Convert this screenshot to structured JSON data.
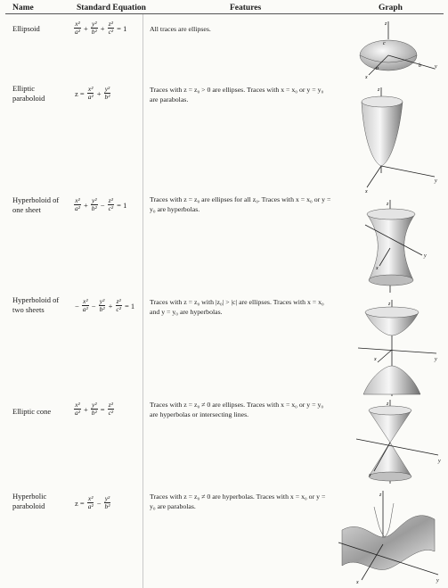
{
  "header": {
    "name": "Name",
    "equation": "Standard Equation",
    "features": "Features",
    "graph": "Graph"
  },
  "rows": [
    {
      "name": "Ellipsoid",
      "eq": [
        [
          "frac",
          "x²",
          "a²"
        ],
        [
          "op",
          "+"
        ],
        [
          "frac",
          "y²",
          "b²"
        ],
        [
          "op",
          "+"
        ],
        [
          "frac",
          "z²",
          "c²"
        ],
        [
          "op",
          "= 1"
        ]
      ],
      "features": "All traces are ellipses."
    },
    {
      "name": "Elliptic paraboloid",
      "eq": [
        [
          "op",
          "z ="
        ],
        [
          "frac",
          "x²",
          "a²"
        ],
        [
          "op",
          "+"
        ],
        [
          "frac",
          "y²",
          "b²"
        ]
      ],
      "features": "Traces with z = z₀ > 0 are ellipses. Traces with x = x₀ or y = y₀ are parabolas."
    },
    {
      "name": "Hyperboloid of one sheet",
      "eq": [
        [
          "frac",
          "x²",
          "a²"
        ],
        [
          "op",
          "+"
        ],
        [
          "frac",
          "y²",
          "b²"
        ],
        [
          "op",
          "−"
        ],
        [
          "frac",
          "z²",
          "c²"
        ],
        [
          "op",
          "= 1"
        ]
      ],
      "features": "Traces with z = z₀ are ellipses for all z₀. Traces with x = x₀ or y = y₀ are hyperbolas."
    },
    {
      "name": "Hyperboloid of two sheets",
      "eq": [
        [
          "op",
          "−"
        ],
        [
          "frac",
          "x²",
          "a²"
        ],
        [
          "op",
          "−"
        ],
        [
          "frac",
          "y²",
          "b²"
        ],
        [
          "op",
          "+"
        ],
        [
          "frac",
          "z²",
          "c²"
        ],
        [
          "op",
          "= 1"
        ]
      ],
      "features": "Traces with z = z₀ with |z₀| > |c| are ellipses. Traces with x = x₀ and y = y₀ are hyperbolas."
    },
    {
      "name": "Elliptic cone",
      "eq": [
        [
          "frac",
          "x²",
          "a²"
        ],
        [
          "op",
          "+"
        ],
        [
          "frac",
          "y²",
          "b²"
        ],
        [
          "op",
          "="
        ],
        [
          "frac",
          "z²",
          "c²"
        ]
      ],
      "features": "Traces with z = z₀ ≠ 0 are ellipses. Traces with x = x₀ or y = y₀ are hyperbolas or intersecting lines."
    },
    {
      "name": "Hyperbolic paraboloid",
      "eq": [
        [
          "op",
          "z ="
        ],
        [
          "frac",
          "x²",
          "a²"
        ],
        [
          "op",
          "−"
        ],
        [
          "frac",
          "y²",
          "b²"
        ]
      ],
      "features": "Traces with z = z₀ ≠ 0 are hyperbolas. Traces with x = x₀ or y = y₀ are parabolas."
    }
  ],
  "axis_labels": {
    "x": "x",
    "y": "y",
    "z": "z",
    "a": "a",
    "b": "b",
    "c": "c"
  }
}
